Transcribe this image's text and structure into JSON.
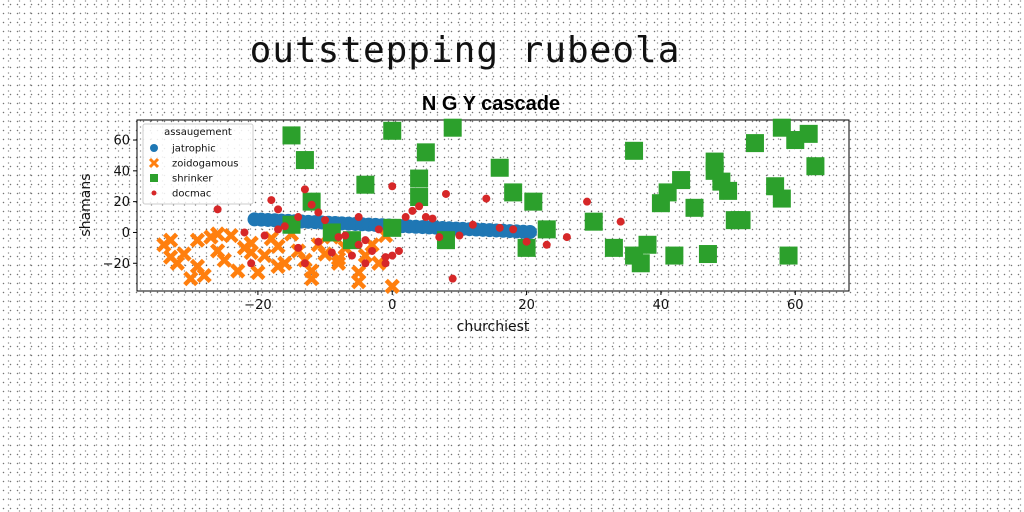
{
  "page_title": "outstepping rubeola",
  "colors": {
    "jatrophic": "#1f77b4",
    "zoidogamous": "#ff7f0e",
    "shrinker": "#2ca02c",
    "docmac": "#d62728"
  },
  "chart_data": {
    "type": "scatter",
    "title": "N G Y cascade",
    "xlabel": "churchiest",
    "ylabel": "shamans",
    "xlim": [
      -38,
      68
    ],
    "ylim": [
      -38,
      73
    ],
    "xticks": [
      -20,
      0,
      20,
      40,
      60
    ],
    "yticks": [
      -20,
      0,
      20,
      40,
      60
    ],
    "grid": false,
    "legend": {
      "title": "assaugement",
      "placement": "top-left"
    },
    "series": [
      {
        "name": "jatrophic",
        "marker": "circle",
        "x": [
          -20.5,
          -19.5,
          -18.5,
          -17.5,
          -16.5,
          -15.5,
          -14.5,
          -13.5,
          -12.5,
          -11.5,
          -10.5,
          -9.5,
          -8.5,
          -7.5,
          -6.5,
          -5.5,
          -4.5,
          -3.5,
          -2.5,
          -1.5,
          -0.5,
          0.5,
          1.5,
          2.5,
          3.5,
          4.5,
          5.5,
          6.5,
          7.5,
          8.5,
          9.5,
          10.5,
          11.5,
          12.5,
          13.5,
          14.5,
          15.5,
          16.5,
          17.5,
          18.5,
          19.5,
          20.5
        ],
        "y": [
          8.5,
          8.3,
          8.1,
          7.9,
          7.7,
          7.5,
          7.3,
          7.1,
          6.9,
          6.7,
          6.5,
          6.3,
          6.1,
          5.9,
          5.7,
          5.5,
          5.3,
          5.1,
          4.9,
          4.7,
          4.5,
          4.3,
          4.1,
          3.9,
          3.7,
          3.5,
          3.3,
          3.1,
          2.9,
          2.7,
          2.5,
          2.3,
          2.1,
          1.9,
          1.7,
          1.5,
          1.3,
          1.1,
          0.9,
          0.7,
          0.5,
          0.3
        ]
      },
      {
        "name": "zoidogamous",
        "marker": "x",
        "x": [
          -34,
          -33,
          -32,
          -31,
          -30,
          -29,
          -28,
          -27,
          -26,
          -25,
          -24,
          -23,
          -22,
          -21,
          -20,
          -19,
          -18,
          -17,
          -16,
          -15,
          -14,
          -13,
          -12,
          -11,
          -10,
          -9,
          -8,
          -7,
          -6,
          -5,
          -4,
          -3,
          -2,
          -1,
          0,
          -33,
          -29,
          -26,
          -21,
          -17,
          -12,
          -8,
          -5
        ],
        "y": [
          -8,
          -16,
          -20,
          -14,
          -30,
          -5,
          -28,
          -3,
          -12,
          -18,
          -2,
          -25,
          -10,
          -7,
          -26,
          -15,
          -4,
          -22,
          -20,
          -1,
          -12,
          -18,
          -25,
          -8,
          -14,
          -3,
          -20,
          -10,
          -5,
          -32,
          -15,
          -8,
          -20,
          -2,
          -35,
          -5,
          -22,
          -1,
          -13,
          -9,
          -30,
          -17,
          -26
        ]
      },
      {
        "name": "shrinker",
        "marker": "square",
        "x": [
          -15,
          -13,
          -12,
          -15,
          -9,
          -6,
          -4,
          0,
          0,
          4,
          4,
          5,
          8,
          9,
          16,
          18,
          20,
          21,
          23,
          30,
          33,
          36,
          36,
          37,
          38,
          40,
          41,
          42,
          43,
          45,
          47,
          48,
          48,
          49,
          50,
          51,
          52,
          54,
          57,
          58,
          58,
          59,
          60,
          62,
          63
        ],
        "y": [
          63,
          47,
          20,
          5,
          0,
          -5,
          31,
          66,
          3,
          35,
          23,
          52,
          -5,
          68,
          42,
          26,
          -10,
          20,
          2,
          7,
          -10,
          53,
          -15,
          -20,
          -8,
          19,
          26,
          -15,
          34,
          16,
          -14,
          46,
          40,
          33,
          27,
          8,
          8,
          58,
          30,
          22,
          68,
          -15,
          60,
          64,
          43
        ]
      },
      {
        "name": "docmac",
        "marker": "dot",
        "x": [
          -26,
          -22,
          -21,
          -19,
          -18,
          -17,
          -17,
          -16,
          -14,
          -14,
          -13,
          -13,
          -12,
          -11,
          -11,
          -10,
          -9,
          -8,
          -7,
          -6,
          -5,
          -5,
          -4,
          -4,
          -3,
          -2,
          -1,
          -1,
          0,
          0,
          1,
          2,
          3,
          4,
          5,
          6,
          7,
          8,
          9,
          10,
          12,
          14,
          16,
          18,
          20,
          23,
          26,
          29,
          34
        ],
        "y": [
          15,
          0,
          -20,
          -2,
          21,
          15,
          2,
          4,
          10,
          -10,
          -20,
          28,
          18,
          13,
          -6,
          8,
          -13,
          -3,
          -2,
          -15,
          -8,
          10,
          -5,
          -20,
          -12,
          2,
          -20,
          -16,
          30,
          -15,
          -12,
          10,
          14,
          17,
          10,
          9,
          -3,
          25,
          -30,
          -2,
          5,
          22,
          3,
          2,
          -6,
          -8,
          -3,
          20,
          7
        ]
      }
    ]
  }
}
